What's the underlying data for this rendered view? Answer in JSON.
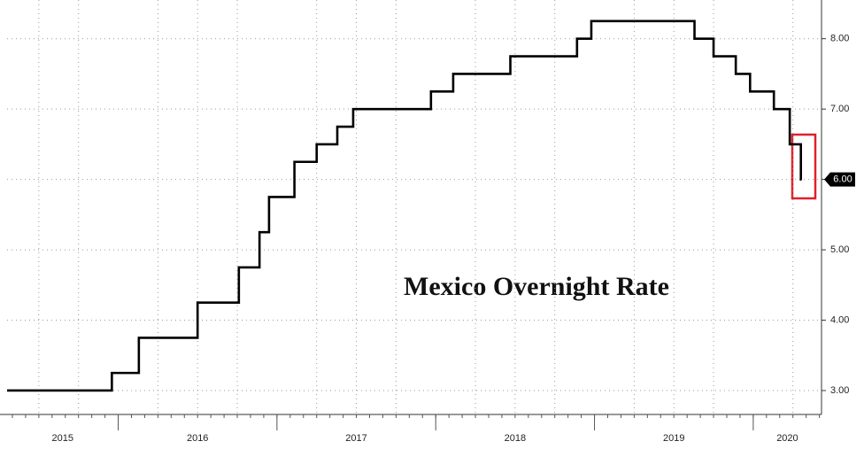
{
  "chart_data": {
    "type": "step",
    "title": "Mexico Overnight Rate",
    "x": [
      2015.3,
      2015.96,
      2016.13,
      2016.5,
      2016.76,
      2016.89,
      2016.95,
      2017.11,
      2017.25,
      2017.38,
      2017.48,
      2017.97,
      2018.11,
      2018.47,
      2018.89,
      2018.98,
      2019.63,
      2019.75,
      2019.89,
      2019.98,
      2020.13,
      2020.23,
      2020.3
    ],
    "values": [
      3.0,
      3.25,
      3.75,
      4.25,
      4.75,
      5.25,
      5.75,
      6.25,
      6.5,
      6.75,
      7.0,
      7.25,
      7.5,
      7.75,
      8.0,
      8.25,
      8.0,
      7.75,
      7.5,
      7.25,
      7.0,
      6.5,
      6.0
    ],
    "last_value_label": "6.00",
    "color": "#000000",
    "xlim": [
      2015.3,
      2020.43
    ],
    "xticks": [
      {
        "value": 2015,
        "label": "2015"
      },
      {
        "value": 2016,
        "label": "2016"
      },
      {
        "value": 2017,
        "label": "2017"
      },
      {
        "value": 2018,
        "label": "2018"
      },
      {
        "value": 2019,
        "label": "2019"
      },
      {
        "value": 2020,
        "label": "2020"
      }
    ],
    "xminorticks": [
      2015.5,
      2015.75,
      2016.25,
      2016.5,
      2016.75,
      2017.25,
      2017.5,
      2017.75,
      2018.25,
      2018.5,
      2018.75,
      2019.25,
      2019.5,
      2019.75,
      2020.25
    ],
    "ylim": [
      2.66,
      8.55
    ],
    "yticks": [
      {
        "value": 3,
        "label": "3.00"
      },
      {
        "value": 4,
        "label": "4.00"
      },
      {
        "value": 5,
        "label": "5.00"
      },
      {
        "value": 6,
        "label": "6.00"
      },
      {
        "value": 7,
        "label": "7.00"
      },
      {
        "value": 8,
        "label": "8.00"
      }
    ],
    "grid": true
  }
}
